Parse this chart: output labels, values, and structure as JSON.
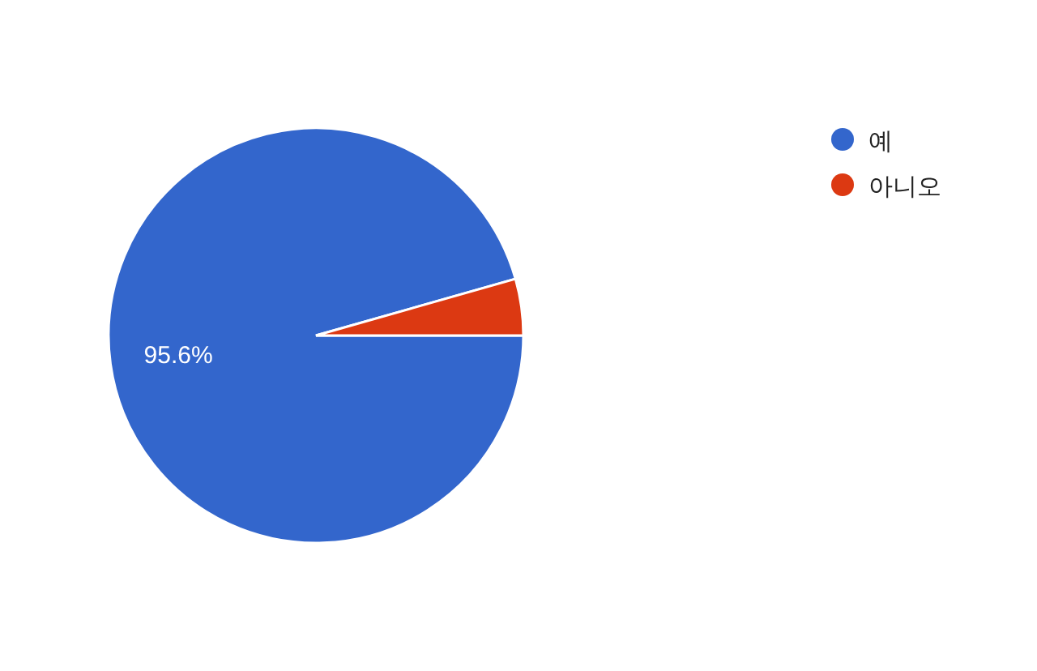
{
  "chart_data": {
    "type": "pie",
    "categories": [
      "예",
      "아니오"
    ],
    "values": [
      95.6,
      4.4
    ],
    "colors": [
      "#3366cc",
      "#dc3912"
    ],
    "value_labels": [
      "95.6%",
      null
    ],
    "legend": "top right"
  }
}
